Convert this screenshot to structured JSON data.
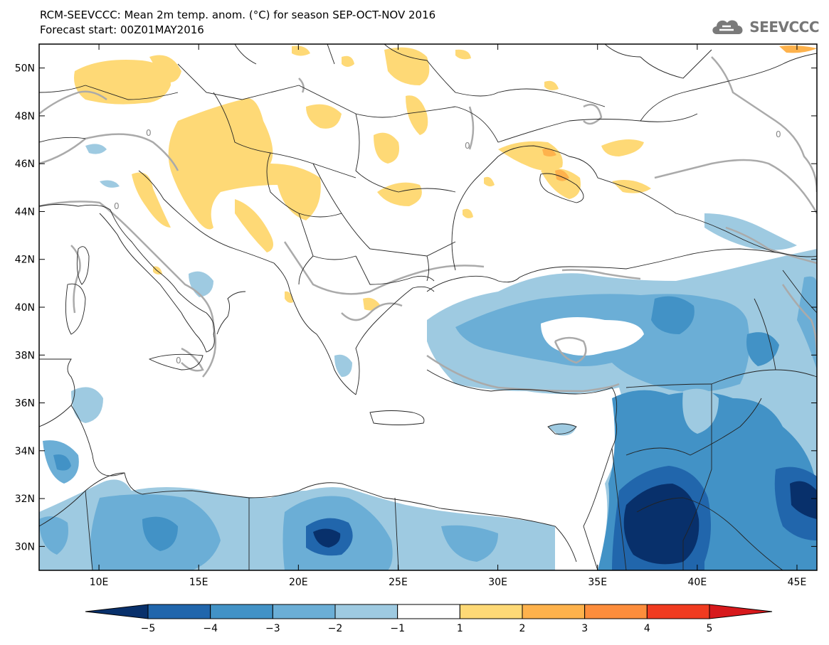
{
  "title_line1": "RCM-SEEVCCC: Mean 2m temp. anom. (°C) for season SEP-OCT-NOV 2016",
  "title_line2": "Forecast start: 00Z01MAY2016",
  "brand": "SEEVCCC",
  "map": {
    "lon_range": [
      7,
      46
    ],
    "lat_range": [
      29,
      51
    ],
    "lat_ticks": [
      {
        "value": 30,
        "label": "30N"
      },
      {
        "value": 32,
        "label": "32N"
      },
      {
        "value": 34,
        "label": "34N"
      },
      {
        "value": 36,
        "label": "36N"
      },
      {
        "value": 38,
        "label": "38N"
      },
      {
        "value": 40,
        "label": "40N"
      },
      {
        "value": 42,
        "label": "42N"
      },
      {
        "value": 44,
        "label": "44N"
      },
      {
        "value": 46,
        "label": "46N"
      },
      {
        "value": 48,
        "label": "48N"
      },
      {
        "value": 50,
        "label": "50N"
      }
    ],
    "lon_ticks": [
      {
        "value": 10,
        "label": "10E"
      },
      {
        "value": 15,
        "label": "15E"
      },
      {
        "value": 20,
        "label": "20E"
      },
      {
        "value": 25,
        "label": "25E"
      },
      {
        "value": 30,
        "label": "30E"
      },
      {
        "value": 35,
        "label": "35E"
      },
      {
        "value": 40,
        "label": "40E"
      },
      {
        "value": 45,
        "label": "45E"
      }
    ],
    "contour_label": "0"
  },
  "colorbar": {
    "labels": [
      "−5",
      "−4",
      "−3",
      "−2",
      "−1",
      "1",
      "2",
      "3",
      "4",
      "5"
    ],
    "colors": [
      "#08306b",
      "#2166ac",
      "#4292c6",
      "#6baed6",
      "#9ecae1",
      "#ffffff",
      "#fed976",
      "#feb24c",
      "#fd8d3c",
      "#f03b20",
      "#d7191c"
    ]
  }
}
